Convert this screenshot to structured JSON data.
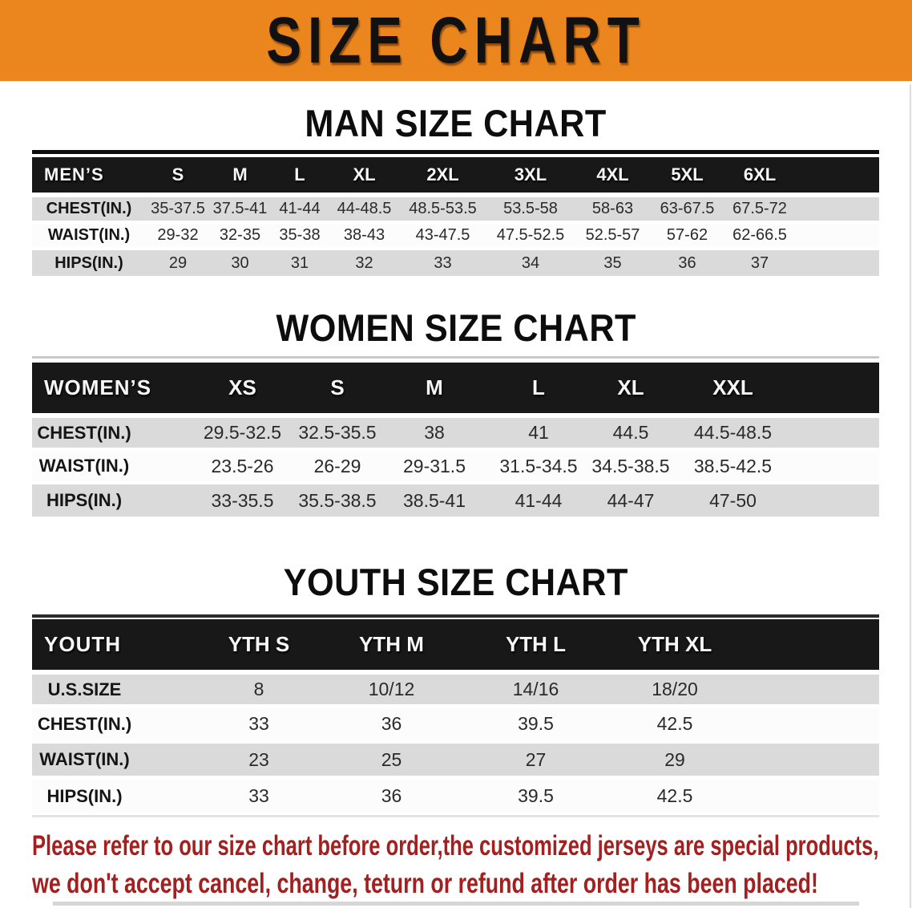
{
  "banner": {
    "title": "SIZE CHART",
    "bg_color": "#EA861D",
    "text_color": "#111111"
  },
  "sections": [
    {
      "heading": "MAN SIZE CHART",
      "table": {
        "header": [
          "MEN’S",
          "S",
          "M",
          "L",
          "XL",
          "2XL",
          "3XL",
          "4XL",
          "5XL",
          "6XL"
        ],
        "rows": [
          [
            "CHEST(IN.)",
            "35-37.5",
            "37.5-41",
            "41-44",
            "44-48.5",
            "48.5-53.5",
            "53.5-58",
            "58-63",
            "63-67.5",
            "67.5-72"
          ],
          [
            "WAIST(IN.)",
            "29-32",
            "32-35",
            "35-38",
            "38-43",
            "43-47.5",
            "47.5-52.5",
            "52.5-57",
            "57-62",
            "62-66.5"
          ],
          [
            "HIPS(IN.)",
            "29",
            "30",
            "31",
            "32",
            "33",
            "34",
            "35",
            "36",
            "37"
          ]
        ]
      }
    },
    {
      "heading": "WOMEN SIZE CHART",
      "table": {
        "header": [
          "WOMEN’S",
          "XS",
          "S",
          "M",
          "L",
          "XL",
          "XXL"
        ],
        "rows": [
          [
            "CHEST(IN.)",
            "29.5-32.5",
            "32.5-35.5",
            "38",
            "41",
            "44.5",
            "44.5-48.5"
          ],
          [
            "WAIST(IN.)",
            "23.5-26",
            "26-29",
            "29-31.5",
            "31.5-34.5",
            "34.5-38.5",
            "38.5-42.5"
          ],
          [
            "HIPS(IN.)",
            "33-35.5",
            "35.5-38.5",
            "38.5-41",
            "41-44",
            "44-47",
            "47-50"
          ]
        ]
      }
    },
    {
      "heading": "YOUTH SIZE CHART",
      "table": {
        "header": [
          "YOUTH",
          "YTH S",
          "YTH M",
          "YTH L",
          "YTH XL"
        ],
        "rows": [
          [
            "U.S.SIZE",
            "8",
            "10/12",
            "14/16",
            "18/20"
          ],
          [
            "CHEST(IN.)",
            "33",
            "36",
            "39.5",
            "42.5"
          ],
          [
            "WAIST(IN.)",
            "23",
            "25",
            "27",
            "29"
          ],
          [
            "HIPS(IN.)",
            "33",
            "36",
            "39.5",
            "42.5"
          ]
        ]
      }
    }
  ],
  "footer": {
    "line1": "Please refer to our size chart before order,the customized jerseys are special products,",
    "line2": "we don't accept cancel, change, teturn or refund after order has been placed!",
    "text_color": "#A32020"
  }
}
